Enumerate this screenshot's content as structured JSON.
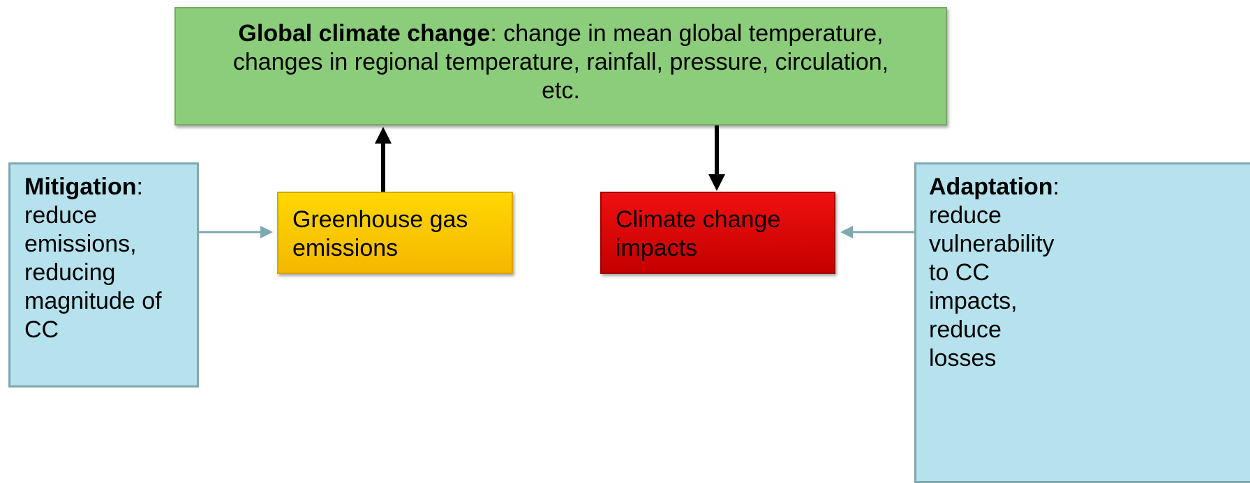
{
  "nodes": {
    "global": {
      "term": "Global climate change",
      "text": ": change in mean global temperature, changes in regional temperature, rainfall, pressure, circulation, etc."
    },
    "emissions": {
      "label": "Greenhouse gas emissions"
    },
    "impacts": {
      "label": "Climate change impacts"
    },
    "mitigation": {
      "term": "Mitigation",
      "text": ": reduce emissions, reducing magnitude of CC"
    },
    "adaptation": {
      "term": "Adaptation",
      "text": ": reduce vulnerability to CC impacts, reduce losses"
    }
  }
}
